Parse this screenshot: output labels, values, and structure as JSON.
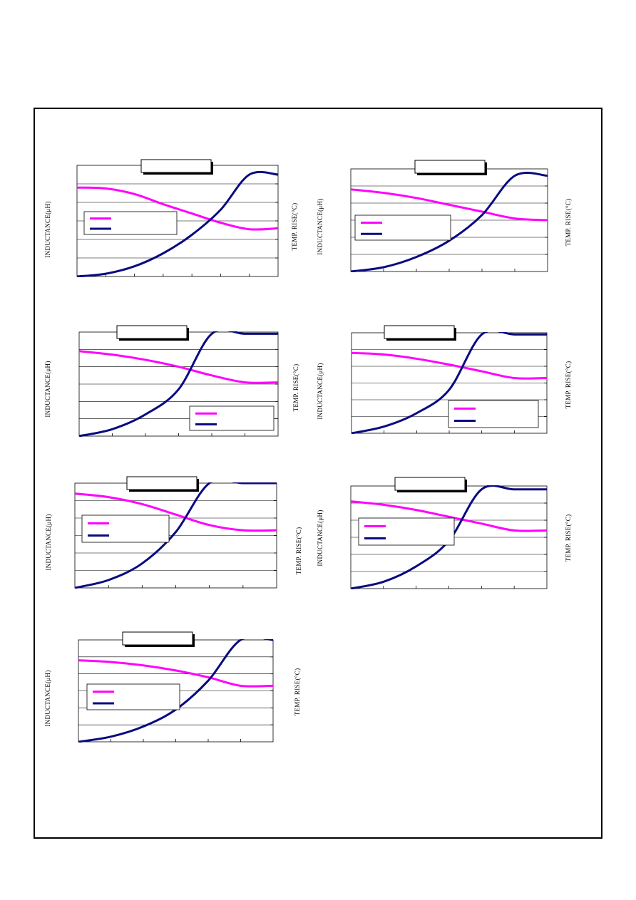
{
  "page": {
    "background": "#ffffff",
    "frame_color": "#000000"
  },
  "colors": {
    "inductance": "#ff00ff",
    "temp_rise": "#0a0a80",
    "grid": "#000000"
  },
  "chart_data": [
    {
      "type": "line",
      "ylabel": "INDUCTANCE(μH)",
      "y2label": "TEMP. RISE(°C)",
      "legend_position": "middle-left",
      "grid": true,
      "x": [
        0,
        1,
        2,
        3,
        4,
        5,
        6,
        7
      ],
      "xlim": [
        0,
        7
      ],
      "ylim": [
        0,
        6
      ],
      "series": [
        {
          "values": [
            4.8,
            4.75,
            4.45,
            3.9,
            3.4,
            2.9,
            2.55,
            2.6
          ]
        },
        {
          "values": [
            0.0,
            0.15,
            0.55,
            1.25,
            2.25,
            3.6,
            5.5,
            5.5
          ]
        }
      ]
    },
    {
      "type": "line",
      "ylabel": "INDUCTANCE(μH)",
      "y2label": "TEMP. RISE(°C)",
      "legend_position": "middle-left",
      "grid": true,
      "x": [
        0,
        1,
        2,
        3,
        4,
        5,
        6
      ],
      "xlim": [
        0,
        6
      ],
      "ylim": [
        0,
        6
      ],
      "series": [
        {
          "values": [
            4.8,
            4.6,
            4.3,
            3.9,
            3.5,
            3.1,
            3.0
          ]
        },
        {
          "values": [
            0.0,
            0.25,
            0.85,
            1.8,
            3.3,
            5.6,
            5.6
          ]
        }
      ]
    },
    {
      "type": "line",
      "ylabel": "INDUCTANCE(μH)",
      "y2label": "TEMP. RISE(°C)",
      "legend_position": "bottom-right",
      "grid": true,
      "x": [
        0,
        1,
        2,
        3,
        4,
        5,
        6
      ],
      "xlim": [
        0,
        6
      ],
      "ylim": [
        0,
        6
      ],
      "series": [
        {
          "values": [
            4.9,
            4.7,
            4.4,
            4.0,
            3.5,
            3.1,
            3.1
          ]
        },
        {
          "values": [
            0.0,
            0.4,
            1.25,
            2.7,
            5.9,
            5.9,
            5.9
          ]
        }
      ]
    },
    {
      "type": "line",
      "ylabel": "INDUCTANCE(μH)",
      "y2label": "TEMP. RISE(°C)",
      "legend_position": "bottom-right",
      "grid": true,
      "x": [
        0,
        1,
        2,
        3,
        4,
        5,
        6
      ],
      "xlim": [
        0,
        6
      ],
      "ylim": [
        0,
        6
      ],
      "series": [
        {
          "values": [
            4.8,
            4.7,
            4.45,
            4.1,
            3.7,
            3.3,
            3.3
          ]
        },
        {
          "values": [
            0.0,
            0.4,
            1.2,
            2.6,
            5.9,
            5.9,
            5.9
          ]
        }
      ]
    },
    {
      "type": "line",
      "ylabel": "INDUCTANCE(μH)",
      "y2label": "TEMP. RISE(°C)",
      "legend_position": "top-left",
      "grid": true,
      "x": [
        0,
        1,
        2,
        3,
        4,
        5,
        6
      ],
      "xlim": [
        0,
        6
      ],
      "ylim": [
        0,
        6
      ],
      "series": [
        {
          "values": [
            5.4,
            5.2,
            4.8,
            4.2,
            3.6,
            3.3,
            3.3
          ]
        },
        {
          "values": [
            0.0,
            0.45,
            1.4,
            3.2,
            6.0,
            6.0,
            6.0
          ]
        }
      ]
    },
    {
      "type": "line",
      "ylabel": "INDUCTANCE(μH)",
      "y2label": "TEMP. RISE(°C)",
      "legend_position": "top-left",
      "grid": true,
      "x": [
        0,
        1,
        2,
        3,
        4,
        5,
        6
      ],
      "xlim": [
        0,
        6
      ],
      "ylim": [
        0,
        6
      ],
      "series": [
        {
          "values": [
            5.1,
            4.9,
            4.6,
            4.2,
            3.8,
            3.4,
            3.4
          ]
        },
        {
          "values": [
            0.0,
            0.4,
            1.3,
            2.8,
            5.8,
            5.8,
            5.8
          ]
        }
      ]
    },
    {
      "type": "line",
      "ylabel": "INDUCTANCE(μH)",
      "y2label": "TEMP. RISE(°C)",
      "legend_position": "middle-left",
      "grid": true,
      "x": [
        0,
        1,
        2,
        3,
        4,
        5,
        6
      ],
      "xlim": [
        0,
        6
      ],
      "ylim": [
        0,
        6
      ],
      "series": [
        {
          "values": [
            4.8,
            4.7,
            4.5,
            4.2,
            3.8,
            3.3,
            3.3
          ]
        },
        {
          "values": [
            0.0,
            0.3,
            0.9,
            1.9,
            3.6,
            6.0,
            6.0
          ]
        }
      ]
    }
  ]
}
